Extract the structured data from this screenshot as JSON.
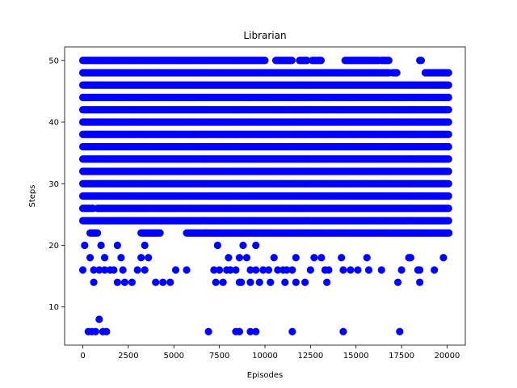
{
  "chart_data": {
    "type": "scatter",
    "title": "Librarian",
    "xlabel": "Episodes",
    "ylabel": "Steps",
    "xlim": [
      -1000,
      21000
    ],
    "ylim": [
      3.8,
      52.2
    ],
    "xticks": [
      0,
      2500,
      5000,
      7500,
      10000,
      12500,
      15000,
      17500,
      20000
    ],
    "yticks": [
      10,
      20,
      30,
      40,
      50
    ],
    "grid": false,
    "marker_color": "#0000ff",
    "series": [
      {
        "values_description": "episode vs steps scatter",
        "bands": [
          {
            "y": 50,
            "segments": [
              [
                0,
                10000
              ],
              [
                10600,
                11500
              ],
              [
                11900,
                12300
              ],
              [
                12600,
                13100
              ],
              [
                14400,
                16300
              ],
              [
                16400,
                16800
              ],
              [
                18500,
                18600
              ]
            ]
          },
          {
            "y": 48,
            "segments": [
              [
                0,
                16800
              ],
              [
                17000,
                17300
              ],
              [
                18800,
                20100
              ]
            ]
          },
          {
            "y": 46,
            "segments": [
              [
                0,
                20100
              ]
            ]
          },
          {
            "y": 44,
            "segments": [
              [
                0,
                20100
              ]
            ]
          },
          {
            "y": 42,
            "segments": [
              [
                0,
                20100
              ]
            ]
          },
          {
            "y": 40,
            "segments": [
              [
                0,
                20100
              ]
            ]
          },
          {
            "y": 38,
            "segments": [
              [
                0,
                20100
              ]
            ]
          },
          {
            "y": 36,
            "segments": [
              [
                0,
                20100
              ]
            ]
          },
          {
            "y": 34,
            "segments": [
              [
                0,
                20100
              ]
            ]
          },
          {
            "y": 32,
            "segments": [
              [
                0,
                20100
              ]
            ]
          },
          {
            "y": 30,
            "segments": [
              [
                0,
                20100
              ]
            ]
          },
          {
            "y": 28,
            "segments": [
              [
                0,
                20100
              ]
            ]
          },
          {
            "y": 26,
            "segments": [
              [
                0,
                600
              ],
              [
                800,
                20100
              ]
            ]
          },
          {
            "y": 24,
            "segments": [
              [
                0,
                20100
              ]
            ]
          },
          {
            "y": 22,
            "segments": [
              [
                400,
                800
              ],
              [
                3200,
                4300
              ],
              [
                5700,
                20100
              ]
            ]
          }
        ],
        "points": [
          [
            100,
            20
          ],
          [
            7400,
            20
          ],
          [
            8800,
            20
          ],
          [
            9500,
            20
          ],
          [
            1000,
            20
          ],
          [
            1900,
            20
          ],
          [
            3400,
            20
          ],
          [
            400,
            18
          ],
          [
            1200,
            18
          ],
          [
            2100,
            18
          ],
          [
            3200,
            18
          ],
          [
            3600,
            18
          ],
          [
            8000,
            18
          ],
          [
            8600,
            18
          ],
          [
            9000,
            18
          ],
          [
            10500,
            18
          ],
          [
            11700,
            18
          ],
          [
            12700,
            18
          ],
          [
            13100,
            18
          ],
          [
            14200,
            18
          ],
          [
            15600,
            18
          ],
          [
            17900,
            18
          ],
          [
            18000,
            18
          ],
          [
            19800,
            18
          ],
          [
            0,
            16
          ],
          [
            600,
            16
          ],
          [
            900,
            16
          ],
          [
            1200,
            16
          ],
          [
            1500,
            16
          ],
          [
            1700,
            16
          ],
          [
            2200,
            16
          ],
          [
            3000,
            16
          ],
          [
            3400,
            16
          ],
          [
            5100,
            16
          ],
          [
            5700,
            16
          ],
          [
            7200,
            16
          ],
          [
            7500,
            16
          ],
          [
            7900,
            16
          ],
          [
            8100,
            16
          ],
          [
            8400,
            16
          ],
          [
            9200,
            16
          ],
          [
            9500,
            16
          ],
          [
            9900,
            16
          ],
          [
            10200,
            16
          ],
          [
            10700,
            16
          ],
          [
            11000,
            16
          ],
          [
            11200,
            16
          ],
          [
            11500,
            16
          ],
          [
            12500,
            16
          ],
          [
            13300,
            16
          ],
          [
            13500,
            16
          ],
          [
            14300,
            16
          ],
          [
            14700,
            16
          ],
          [
            15100,
            16
          ],
          [
            15700,
            16
          ],
          [
            16400,
            16
          ],
          [
            17500,
            16
          ],
          [
            18400,
            16
          ],
          [
            18500,
            16
          ],
          [
            19300,
            16
          ],
          [
            600,
            14
          ],
          [
            1900,
            14
          ],
          [
            2300,
            14
          ],
          [
            2700,
            14
          ],
          [
            4000,
            14
          ],
          [
            4400,
            14
          ],
          [
            4800,
            14
          ],
          [
            7300,
            14
          ],
          [
            7700,
            14
          ],
          [
            8600,
            14
          ],
          [
            8700,
            14
          ],
          [
            9200,
            14
          ],
          [
            9700,
            14
          ],
          [
            10300,
            14
          ],
          [
            11100,
            14
          ],
          [
            11700,
            14
          ],
          [
            12200,
            14
          ],
          [
            13400,
            14
          ],
          [
            17300,
            14
          ],
          [
            18500,
            14
          ],
          [
            900,
            8
          ],
          [
            300,
            6
          ],
          [
            500,
            6
          ],
          [
            700,
            6
          ],
          [
            1100,
            6
          ],
          [
            1300,
            6
          ],
          [
            6900,
            6
          ],
          [
            8400,
            6
          ],
          [
            8600,
            6
          ],
          [
            9200,
            6
          ],
          [
            9500,
            6
          ],
          [
            11500,
            6
          ],
          [
            14300,
            6
          ],
          [
            17400,
            6
          ]
        ]
      }
    ]
  }
}
